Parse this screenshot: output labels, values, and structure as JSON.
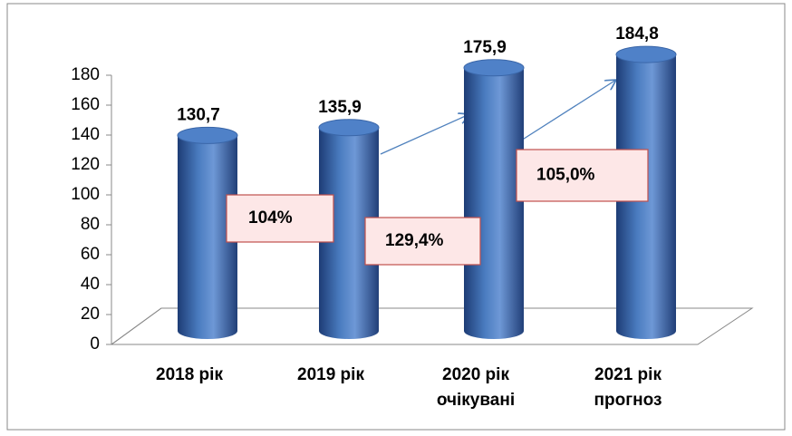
{
  "chart_data": {
    "type": "bar",
    "categories": [
      "2018 рік",
      "2019 рік",
      "2020 рік\nочікувані",
      "2021 рік\nпрогноз"
    ],
    "values": [
      130.7,
      135.9,
      175.9,
      184.8
    ],
    "value_labels": [
      "130,7",
      "135,9",
      "175,9",
      "184,8"
    ],
    "color": "#4f81bd",
    "ylim": [
      0,
      180
    ],
    "yticks": [
      0,
      20,
      40,
      60,
      80,
      100,
      120,
      140,
      160,
      180
    ],
    "annotations": [
      "104%",
      "129,4%",
      "105,0%"
    ]
  }
}
